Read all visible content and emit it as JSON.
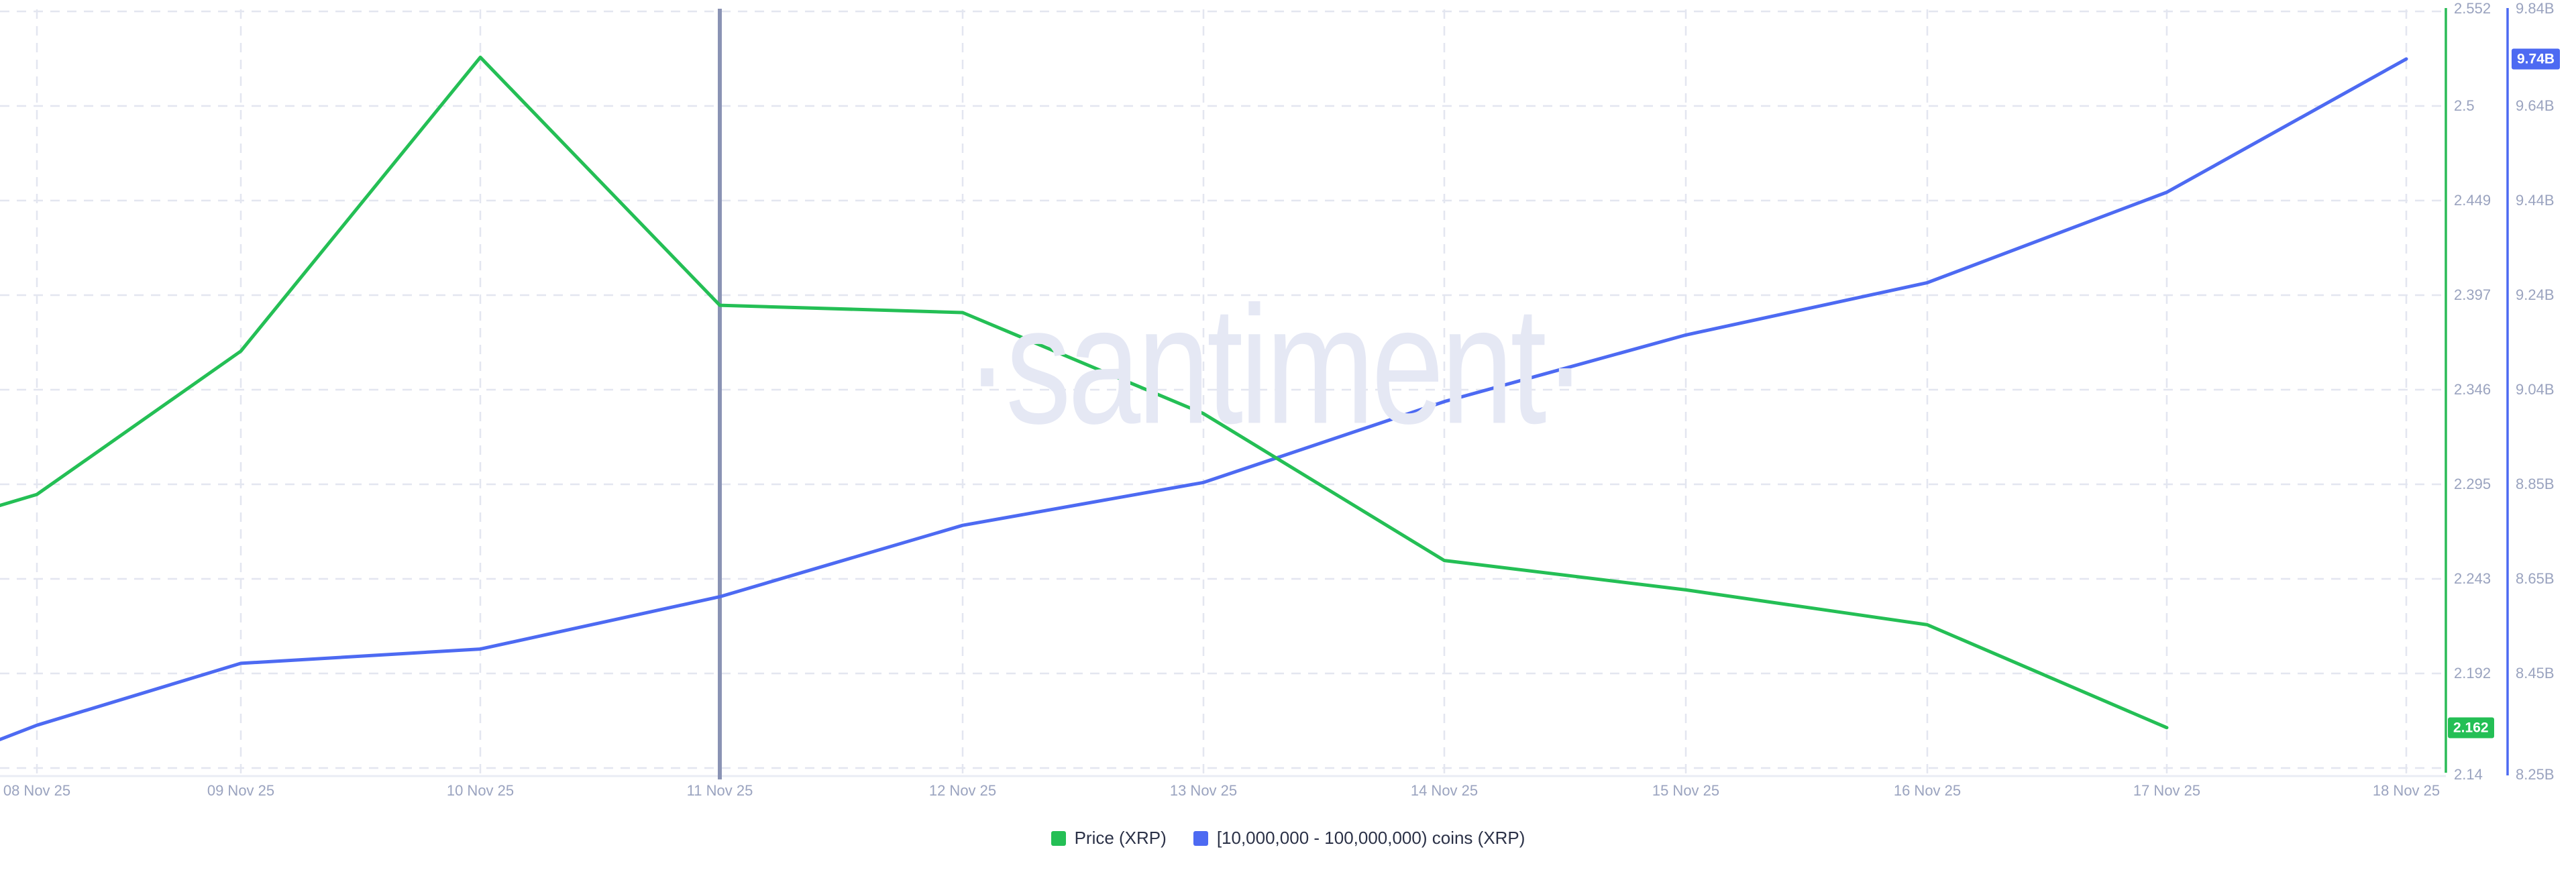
{
  "watermark": {
    "text": "·santiment·"
  },
  "legend": {
    "items": [
      {
        "label": "Price (XRP)",
        "color": "#24bf55"
      },
      {
        "label": "[10,000,000 - 100,000,000) coins (XRP)",
        "color": "#4d6af2"
      }
    ]
  },
  "chart_data": {
    "type": "line",
    "title": "",
    "x_labels": [
      "08 Nov 25",
      "09 Nov 25",
      "10 Nov 25",
      "11 Nov 25",
      "12 Nov 25",
      "13 Nov 25",
      "14 Nov 25",
      "15 Nov 25",
      "16 Nov 25",
      "17 Nov 25",
      "18 Nov 25"
    ],
    "series": [
      {
        "name": "Price (XRP)",
        "color": "#24bf55",
        "axis": "price",
        "edge_value": 2.283,
        "values": [
          2.289,
          2.367,
          2.527,
          2.392,
          2.388,
          2.333,
          2.253,
          2.237,
          2.218,
          2.162,
          null
        ],
        "last_value_label": "2.162"
      },
      {
        "name": "[10,000,000 - 100,000,000) coins (XRP)",
        "color": "#4d6af2",
        "axis": "coins",
        "edge_value": 8.31,
        "values": [
          8.34,
          8.47,
          8.5,
          8.61,
          8.76,
          8.85,
          9.02,
          9.16,
          9.27,
          9.46,
          9.74
        ],
        "last_value_label": "9.74B"
      }
    ],
    "axes": {
      "price": {
        "position": "right-inner",
        "line_color": "#2abb57",
        "min": 2.14,
        "max": 2.552,
        "ticks": [
          "2.552",
          "2.5",
          "2.449",
          "2.397",
          "2.346",
          "2.295",
          "2.243",
          "2.192",
          "2.14"
        ]
      },
      "coins": {
        "position": "right-outer",
        "line_color": "#4d6af2",
        "min": 8.25,
        "max": 9.84,
        "ticks": [
          "9.84B",
          "9.64B",
          "9.44B",
          "9.24B",
          "9.04B",
          "8.85B",
          "8.65B",
          "8.45B",
          "8.25B"
        ]
      }
    },
    "highlight_date": "11 Nov 25",
    "grid": {
      "horizontal": true,
      "vertical": true,
      "style": "dashed",
      "color": "#e3e6f0"
    },
    "highlight_line_color": "#8a93b4",
    "bottom_axis_color": "#e9ecf4",
    "legend_position": "bottom-center"
  }
}
